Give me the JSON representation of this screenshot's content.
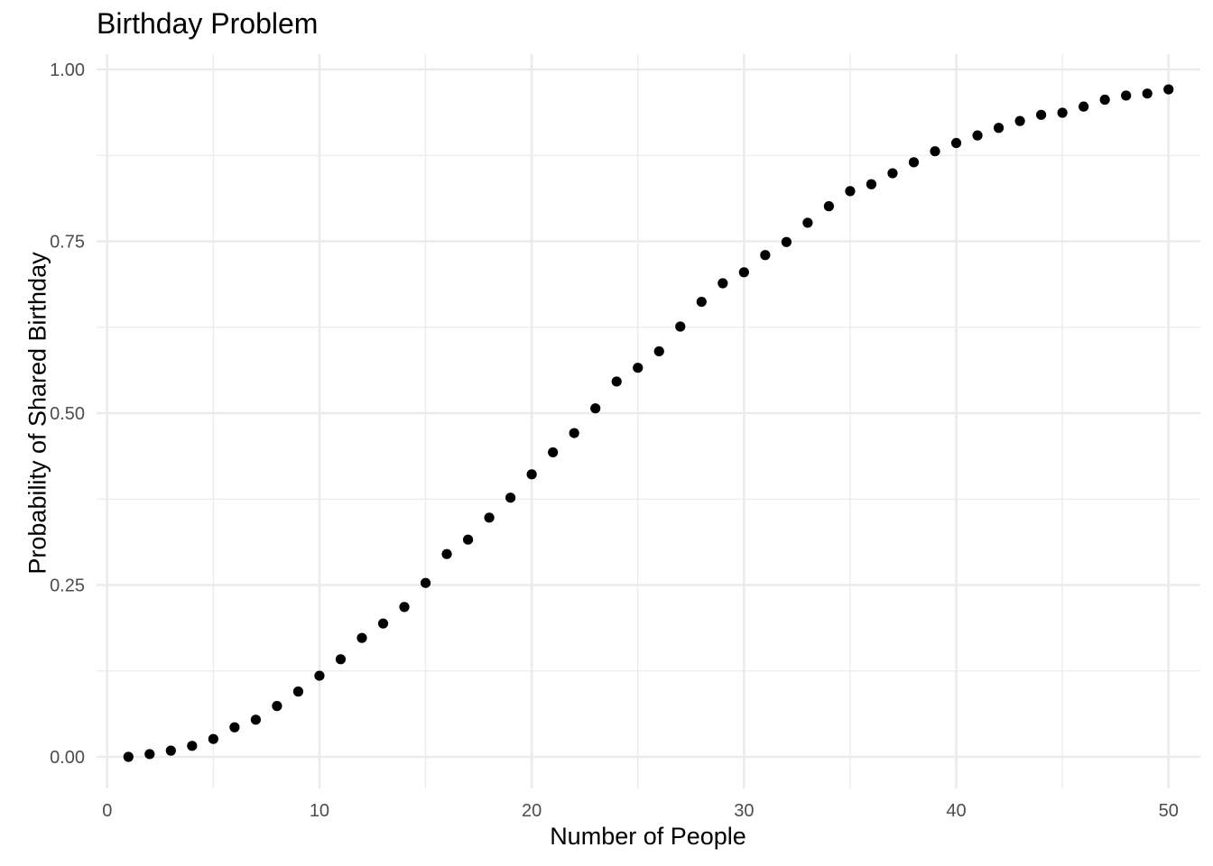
{
  "chart_data": {
    "type": "scatter",
    "title": "Birthday Problem",
    "xlabel": "Number of People",
    "ylabel": "Probability of Shared Birthday",
    "xlim": [
      -0.5,
      51.5
    ],
    "ylim": [
      -0.02,
      1.0
    ],
    "x_ticks": [
      0,
      10,
      20,
      30,
      40,
      50
    ],
    "x_tick_labels": [
      "0",
      "10",
      "20",
      "30",
      "40",
      "50"
    ],
    "x_minor_ticks": [
      5,
      15,
      25,
      35,
      45
    ],
    "y_ticks": [
      0,
      0.25,
      0.5,
      0.75,
      1.0
    ],
    "y_tick_labels": [
      "0.00",
      "0.25",
      "0.50",
      "0.75",
      "1.00"
    ],
    "y_minor_ticks": [
      0.125,
      0.375,
      0.625,
      0.875
    ],
    "grid": true,
    "point_color": "#000000",
    "x": [
      1,
      2,
      3,
      4,
      5,
      6,
      7,
      8,
      9,
      10,
      11,
      12,
      13,
      14,
      15,
      16,
      17,
      18,
      19,
      20,
      21,
      22,
      23,
      24,
      25,
      26,
      27,
      28,
      29,
      30,
      31,
      32,
      33,
      34,
      35,
      36,
      37,
      38,
      39,
      40,
      41,
      42,
      43,
      44,
      45,
      46,
      47,
      48,
      49,
      50
    ],
    "y": [
      0.0,
      0.004,
      0.009,
      0.016,
      0.026,
      0.043,
      0.054,
      0.074,
      0.095,
      0.118,
      0.142,
      0.173,
      0.194,
      0.218,
      0.253,
      0.295,
      0.316,
      0.348,
      0.377,
      0.411,
      0.443,
      0.471,
      0.507,
      0.546,
      0.566,
      0.59,
      0.626,
      0.662,
      0.689,
      0.705,
      0.73,
      0.749,
      0.777,
      0.801,
      0.823,
      0.833,
      0.849,
      0.865,
      0.881,
      0.893,
      0.904,
      0.915,
      0.925,
      0.934,
      0.937,
      0.946,
      0.956,
      0.962,
      0.965,
      0.971
    ]
  }
}
